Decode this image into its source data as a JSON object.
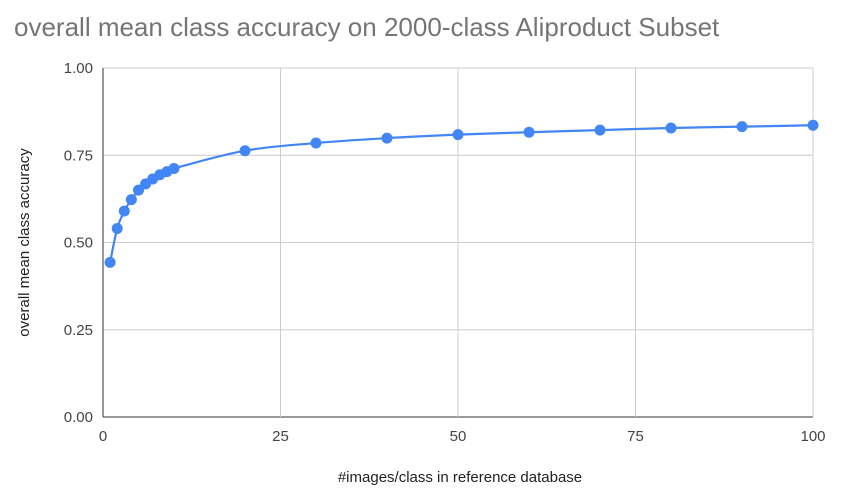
{
  "chart_data": {
    "type": "line",
    "title": "overall mean class accuracy on 2000-class Aliproduct Subset",
    "xlabel": "#images/class in reference database",
    "ylabel": "overall mean class accuracy",
    "xlim": [
      0,
      100
    ],
    "ylim": [
      0,
      1
    ],
    "x_ticks": [
      "0",
      "25",
      "50",
      "75",
      "100"
    ],
    "y_ticks": [
      "0.00",
      "0.25",
      "0.50",
      "0.75",
      "1.00"
    ],
    "grid": true,
    "legend": "none",
    "series": [
      {
        "color": "#4285f4",
        "x": [
          1,
          2,
          3,
          4,
          5,
          6,
          7,
          8,
          9,
          10,
          20,
          30,
          40,
          50,
          60,
          70,
          80,
          90,
          100
        ],
        "y": [
          0.443,
          0.54,
          0.59,
          0.623,
          0.65,
          0.668,
          0.682,
          0.694,
          0.703,
          0.712,
          0.763,
          0.785,
          0.799,
          0.809,
          0.816,
          0.822,
          0.828,
          0.832,
          0.836
        ]
      }
    ]
  }
}
